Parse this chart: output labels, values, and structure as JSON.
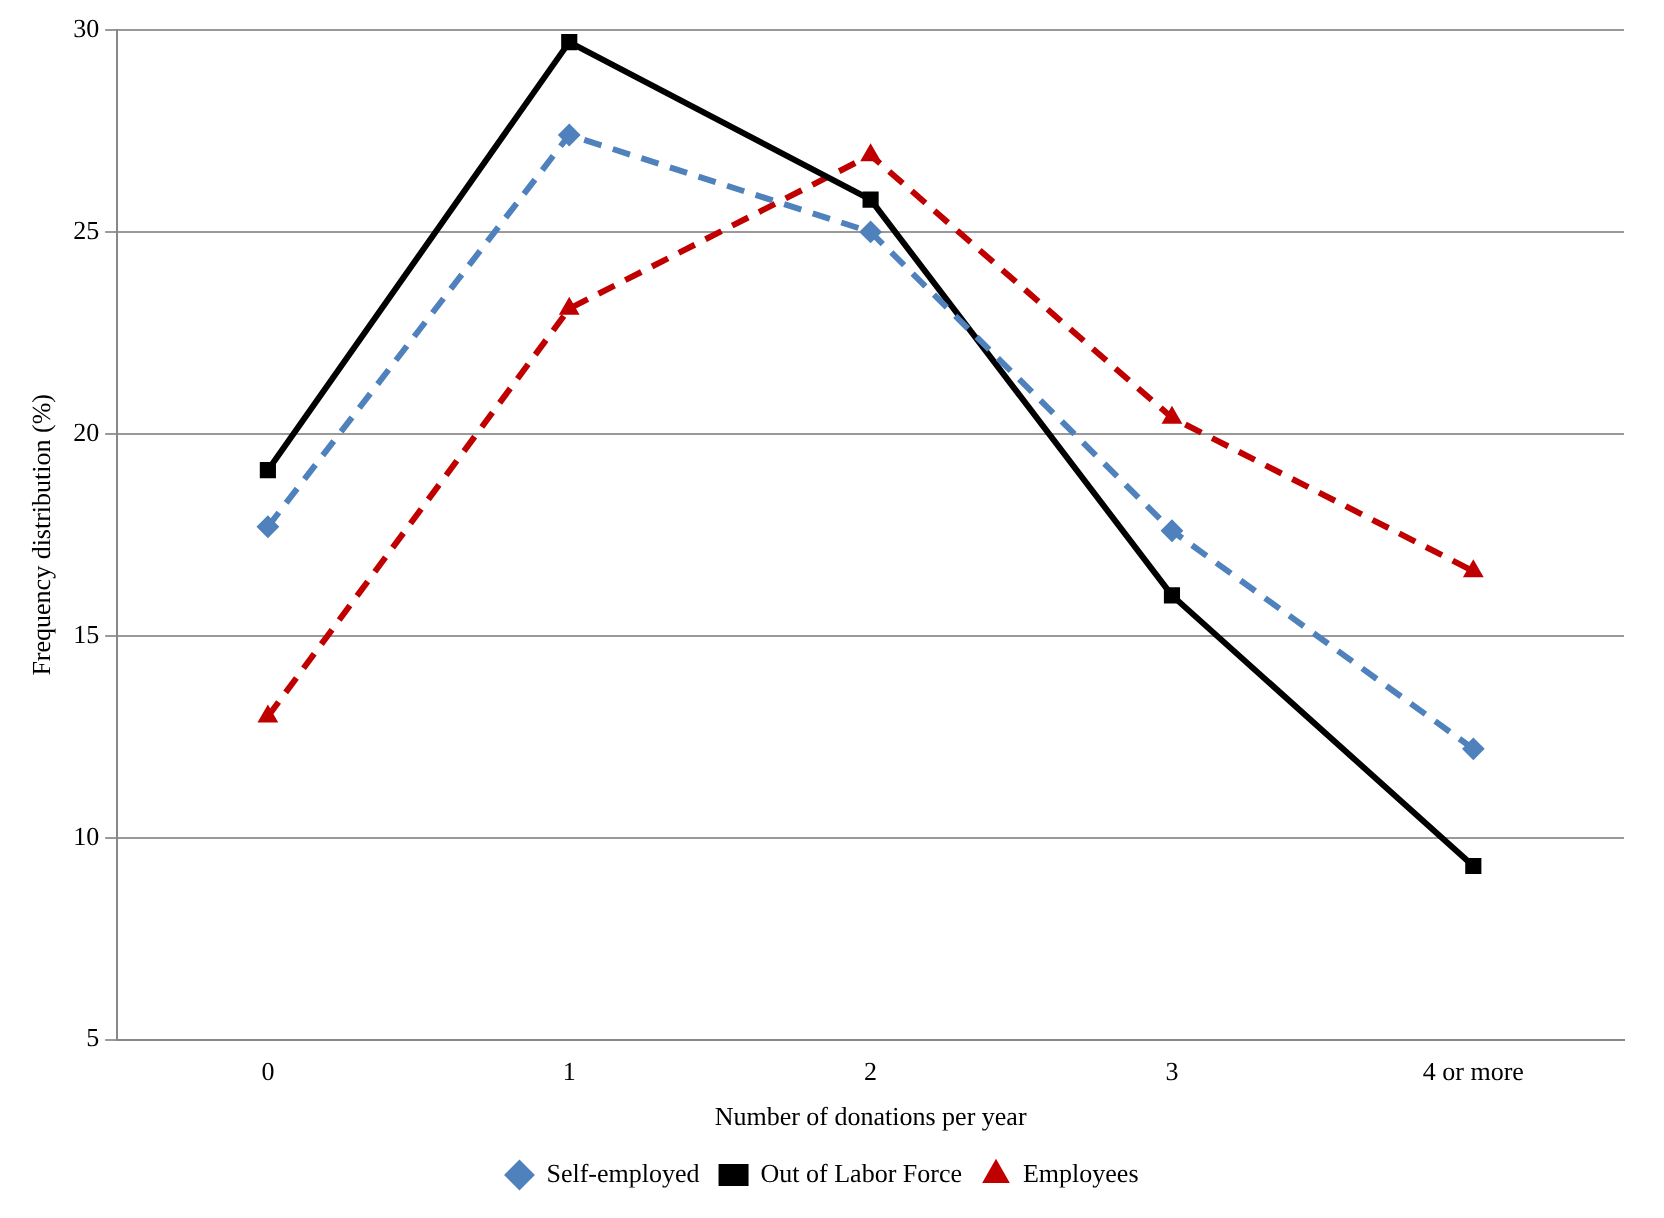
{
  "chart_data": {
    "type": "line",
    "xlabel": "Number of donations per year",
    "ylabel": "Frequency distribution (%)",
    "categories": [
      "0",
      "1",
      "2",
      "3",
      "4 or more"
    ],
    "series": [
      {
        "name": "Self-employed",
        "color": "#4f81bd",
        "marker": "diamond",
        "line_style": "dashed",
        "values": [
          17.7,
          27.4,
          25.0,
          17.6,
          12.2
        ]
      },
      {
        "name": "Out of Labor Force",
        "color": "#000000",
        "marker": "square",
        "line_style": "solid",
        "values": [
          19.1,
          29.7,
          25.8,
          16.0,
          9.3
        ]
      },
      {
        "name": "Employees",
        "color": "#c00000",
        "marker": "triangle",
        "line_style": "dashed",
        "values": [
          13.0,
          23.1,
          26.9,
          20.4,
          16.6
        ]
      }
    ],
    "ylim": [
      5,
      30
    ],
    "yticks": [
      5,
      10,
      15,
      20,
      25,
      30
    ],
    "grid": "y",
    "legend": "bottom"
  }
}
